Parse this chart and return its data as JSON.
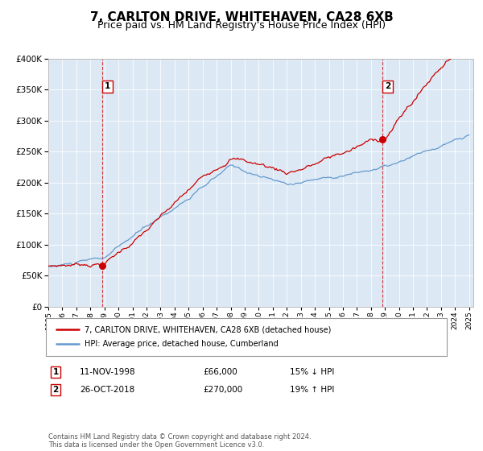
{
  "title": "7, CARLTON DRIVE, WHITEHAVEN, CA28 6XB",
  "subtitle": "Price paid vs. HM Land Registry's House Price Index (HPI)",
  "legend_line1": "7, CARLTON DRIVE, WHITEHAVEN, CA28 6XB (detached house)",
  "legend_line2": "HPI: Average price, detached house, Cumberland",
  "sale1_date_label": "11-NOV-1998",
  "sale1_price_label": "£66,000",
  "sale1_pct_label": "15% ↓ HPI",
  "sale1_year": 1998.87,
  "sale1_price": 66000,
  "sale2_date_label": "26-OCT-2018",
  "sale2_price_label": "£270,000",
  "sale2_pct_label": "19% ↑ HPI",
  "sale2_year": 2018.82,
  "sale2_price": 270000,
  "footer": "Contains HM Land Registry data © Crown copyright and database right 2024.\nThis data is licensed under the Open Government Licence v3.0.",
  "ylim": [
    0,
    400000
  ],
  "bg_color": "#dce9f5",
  "red_color": "#cc0000",
  "blue_color": "#6699cc",
  "title_fontsize": 11,
  "subtitle_fontsize": 9
}
